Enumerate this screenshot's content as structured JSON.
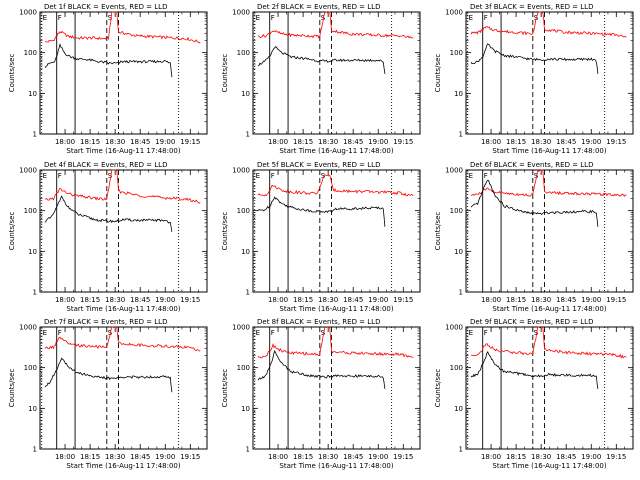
{
  "figure": {
    "ylabel": "Counts/sec",
    "xlabel": "Start Time (16-Aug-11 17:48:00)"
  },
  "chart_data": {
    "type": "line",
    "yscale": "log",
    "ylim": [
      1,
      1000
    ],
    "y_ticks": [
      "1",
      "10",
      "100",
      "1000"
    ],
    "x_ticks": [
      "18:00",
      "18:15",
      "18:30",
      "18:45",
      "19:00",
      "19:15"
    ],
    "xlim_minutes_after_start": [
      -3,
      97
    ],
    "series_names": [
      "Events",
      "LLD"
    ],
    "series_colors": {
      "Events": "#000000",
      "LLD": "#ff0000"
    },
    "interval_markers": [
      {
        "label": "E",
        "style": "dotted",
        "minutes": [
          -2,
          80
        ]
      },
      {
        "label": "F",
        "style": "solid",
        "minutes": [
          7,
          18
        ]
      },
      {
        "label": "S",
        "style": "dashed",
        "minutes": [
          37,
          44
        ]
      }
    ],
    "panels": [
      {
        "title": "Det 1f BLACK = Events, RED = LLD",
        "black": [
          [
            0,
            45
          ],
          [
            3,
            55
          ],
          [
            6,
            60
          ],
          [
            9,
            150
          ],
          [
            12,
            95
          ],
          [
            15,
            80
          ],
          [
            20,
            70
          ],
          [
            25,
            68
          ],
          [
            30,
            62
          ],
          [
            35,
            58
          ],
          [
            38,
            55
          ],
          [
            44,
            55
          ],
          [
            46,
            60
          ],
          [
            55,
            60
          ],
          [
            65,
            60
          ],
          [
            72,
            62
          ],
          [
            75,
            55
          ],
          [
            76,
            25
          ]
        ],
        "red": [
          [
            0,
            180
          ],
          [
            5,
            200
          ],
          [
            9,
            330
          ],
          [
            14,
            250
          ],
          [
            20,
            230
          ],
          [
            30,
            230
          ],
          [
            35,
            220
          ],
          [
            38,
            230
          ],
          [
            40,
            1000
          ],
          [
            43,
            1000
          ],
          [
            44,
            320
          ],
          [
            55,
            260
          ],
          [
            70,
            240
          ],
          [
            85,
            220
          ],
          [
            93,
            180
          ]
        ]
      },
      {
        "title": "Det 2f BLACK = Events, RED = LLD",
        "black": [
          [
            0,
            50
          ],
          [
            4,
            60
          ],
          [
            7,
            80
          ],
          [
            10,
            140
          ],
          [
            14,
            100
          ],
          [
            20,
            78
          ],
          [
            30,
            70
          ],
          [
            37,
            62
          ],
          [
            44,
            62
          ],
          [
            46,
            65
          ],
          [
            55,
            65
          ],
          [
            65,
            65
          ],
          [
            72,
            65
          ],
          [
            75,
            60
          ],
          [
            76,
            30
          ]
        ],
        "red": [
          [
            0,
            250
          ],
          [
            5,
            260
          ],
          [
            9,
            350
          ],
          [
            14,
            290
          ],
          [
            20,
            270
          ],
          [
            30,
            260
          ],
          [
            37,
            250
          ],
          [
            40,
            1000
          ],
          [
            43,
            1000
          ],
          [
            44,
            350
          ],
          [
            55,
            290
          ],
          [
            70,
            270
          ],
          [
            85,
            260
          ],
          [
            93,
            230
          ]
        ]
      },
      {
        "title": "Det 3f BLACK = Events, RED = LLD",
        "black": [
          [
            0,
            55
          ],
          [
            4,
            60
          ],
          [
            7,
            80
          ],
          [
            10,
            160
          ],
          [
            14,
            110
          ],
          [
            20,
            85
          ],
          [
            30,
            75
          ],
          [
            37,
            68
          ],
          [
            44,
            68
          ],
          [
            46,
            70
          ],
          [
            55,
            68
          ],
          [
            65,
            68
          ],
          [
            72,
            70
          ],
          [
            75,
            62
          ],
          [
            76,
            30
          ]
        ],
        "red": [
          [
            0,
            300
          ],
          [
            5,
            320
          ],
          [
            9,
            420
          ],
          [
            14,
            360
          ],
          [
            20,
            330
          ],
          [
            30,
            310
          ],
          [
            37,
            290
          ],
          [
            40,
            1000
          ],
          [
            43,
            1000
          ],
          [
            44,
            380
          ],
          [
            55,
            320
          ],
          [
            70,
            300
          ],
          [
            85,
            280
          ],
          [
            93,
            240
          ]
        ]
      },
      {
        "title": "Det 4f BLACK = Events, RED = LLD",
        "black": [
          [
            0,
            55
          ],
          [
            4,
            70
          ],
          [
            7,
            120
          ],
          [
            10,
            220
          ],
          [
            14,
            120
          ],
          [
            20,
            80
          ],
          [
            30,
            60
          ],
          [
            37,
            55
          ],
          [
            44,
            55
          ],
          [
            46,
            60
          ],
          [
            55,
            58
          ],
          [
            65,
            58
          ],
          [
            72,
            58
          ],
          [
            75,
            50
          ],
          [
            76,
            30
          ]
        ],
        "red": [
          [
            0,
            180
          ],
          [
            5,
            200
          ],
          [
            9,
            340
          ],
          [
            14,
            260
          ],
          [
            20,
            230
          ],
          [
            30,
            200
          ],
          [
            37,
            190
          ],
          [
            40,
            1000
          ],
          [
            43,
            1000
          ],
          [
            44,
            300
          ],
          [
            55,
            240
          ],
          [
            70,
            210
          ],
          [
            85,
            190
          ],
          [
            93,
            160
          ]
        ]
      },
      {
        "title": "Det 5f BLACK = Events, RED = LLD",
        "black": [
          [
            0,
            100
          ],
          [
            4,
            105
          ],
          [
            7,
            130
          ],
          [
            10,
            220
          ],
          [
            14,
            150
          ],
          [
            20,
            120
          ],
          [
            30,
            100
          ],
          [
            37,
            95
          ],
          [
            44,
            95
          ],
          [
            46,
            110
          ],
          [
            55,
            112
          ],
          [
            65,
            115
          ],
          [
            72,
            118
          ],
          [
            75,
            115
          ],
          [
            76,
            40
          ]
        ],
        "red": [
          [
            0,
            240
          ],
          [
            5,
            250
          ],
          [
            9,
            420
          ],
          [
            14,
            320
          ],
          [
            20,
            290
          ],
          [
            30,
            270
          ],
          [
            35,
            260
          ],
          [
            38,
            450
          ],
          [
            40,
            800
          ],
          [
            43,
            700
          ],
          [
            45,
            320
          ],
          [
            55,
            300
          ],
          [
            70,
            290
          ],
          [
            85,
            270
          ],
          [
            93,
            230
          ]
        ]
      },
      {
        "title": "Det 6f BLACK = Events, RED = LLD",
        "black": [
          [
            0,
            120
          ],
          [
            4,
            150
          ],
          [
            7,
            300
          ],
          [
            10,
            600
          ],
          [
            14,
            250
          ],
          [
            20,
            130
          ],
          [
            30,
            95
          ],
          [
            37,
            85
          ],
          [
            44,
            85
          ],
          [
            46,
            90
          ],
          [
            55,
            92
          ],
          [
            65,
            95
          ],
          [
            72,
            95
          ],
          [
            75,
            90
          ],
          [
            76,
            40
          ]
        ],
        "red": [
          [
            0,
            240
          ],
          [
            5,
            260
          ],
          [
            9,
            350
          ],
          [
            14,
            290
          ],
          [
            20,
            270
          ],
          [
            30,
            250
          ],
          [
            37,
            240
          ],
          [
            40,
            1000
          ],
          [
            43,
            1000
          ],
          [
            44,
            280
          ],
          [
            55,
            270
          ],
          [
            70,
            260
          ],
          [
            85,
            250
          ],
          [
            93,
            240
          ]
        ]
      },
      {
        "title": "Det 7f BLACK = Events, RED = LLD",
        "black": [
          [
            0,
            35
          ],
          [
            3,
            45
          ],
          [
            7,
            90
          ],
          [
            10,
            180
          ],
          [
            14,
            100
          ],
          [
            20,
            75
          ],
          [
            30,
            60
          ],
          [
            37,
            55
          ],
          [
            44,
            55
          ],
          [
            46,
            60
          ],
          [
            55,
            58
          ],
          [
            65,
            60
          ],
          [
            72,
            60
          ],
          [
            75,
            55
          ],
          [
            76,
            25
          ]
        ],
        "red": [
          [
            0,
            300
          ],
          [
            5,
            320
          ],
          [
            9,
            550
          ],
          [
            14,
            380
          ],
          [
            20,
            350
          ],
          [
            30,
            330
          ],
          [
            37,
            310
          ],
          [
            40,
            1000
          ],
          [
            43,
            1000
          ],
          [
            44,
            400
          ],
          [
            55,
            360
          ],
          [
            70,
            340
          ],
          [
            85,
            320
          ],
          [
            93,
            260
          ]
        ]
      },
      {
        "title": "Det 8f BLACK = Events, RED = LLD",
        "black": [
          [
            0,
            50
          ],
          [
            4,
            60
          ],
          [
            7,
            100
          ],
          [
            10,
            250
          ],
          [
            14,
            130
          ],
          [
            20,
            80
          ],
          [
            30,
            65
          ],
          [
            37,
            60
          ],
          [
            44,
            60
          ],
          [
            46,
            65
          ],
          [
            55,
            62
          ],
          [
            65,
            62
          ],
          [
            72,
            62
          ],
          [
            75,
            55
          ],
          [
            76,
            30
          ]
        ],
        "red": [
          [
            0,
            180
          ],
          [
            5,
            200
          ],
          [
            9,
            350
          ],
          [
            14,
            260
          ],
          [
            20,
            230
          ],
          [
            30,
            220
          ],
          [
            37,
            210
          ],
          [
            40,
            1000
          ],
          [
            43,
            1000
          ],
          [
            44,
            250
          ],
          [
            55,
            230
          ],
          [
            70,
            220
          ],
          [
            85,
            210
          ],
          [
            93,
            180
          ]
        ]
      },
      {
        "title": "Det 9f BLACK = Events, RED = LLD",
        "black": [
          [
            0,
            60
          ],
          [
            4,
            70
          ],
          [
            7,
            120
          ],
          [
            10,
            240
          ],
          [
            14,
            120
          ],
          [
            20,
            80
          ],
          [
            30,
            70
          ],
          [
            37,
            62
          ],
          [
            44,
            62
          ],
          [
            46,
            68
          ],
          [
            55,
            65
          ],
          [
            65,
            65
          ],
          [
            72,
            65
          ],
          [
            75,
            60
          ],
          [
            76,
            30
          ]
        ],
        "red": [
          [
            0,
            200
          ],
          [
            5,
            220
          ],
          [
            9,
            380
          ],
          [
            14,
            280
          ],
          [
            20,
            250
          ],
          [
            30,
            230
          ],
          [
            37,
            210
          ],
          [
            40,
            1000
          ],
          [
            43,
            1000
          ],
          [
            44,
            280
          ],
          [
            55,
            240
          ],
          [
            70,
            220
          ],
          [
            85,
            210
          ],
          [
            93,
            180
          ]
        ]
      }
    ]
  }
}
